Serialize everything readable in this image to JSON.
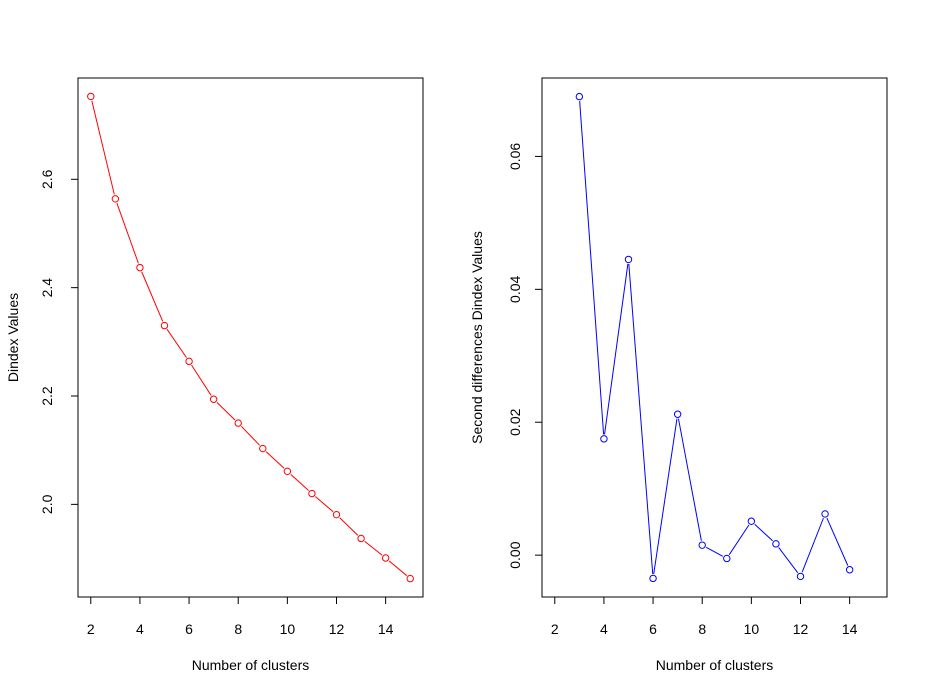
{
  "chart_data": [
    {
      "type": "line",
      "title": "",
      "xlabel": "Number of clusters",
      "ylabel": "Dindex Values",
      "x": [
        2,
        3,
        4,
        5,
        6,
        7,
        8,
        9,
        10,
        11,
        12,
        13,
        14,
        15
      ],
      "values": [
        2.753,
        2.564,
        2.437,
        2.33,
        2.264,
        2.194,
        2.15,
        2.103,
        2.061,
        2.02,
        1.981,
        1.937,
        1.901,
        1.863
      ],
      "xlim": [
        1.48,
        15.52
      ],
      "ylim": [
        1.829,
        2.787
      ],
      "xticks": [
        2,
        4,
        6,
        8,
        10,
        12,
        14
      ],
      "yticks": [
        2.0,
        2.2,
        2.4,
        2.6
      ],
      "ytick_labels": [
        "2.0",
        "2.2",
        "2.4",
        "2.6"
      ],
      "color": "#ff0000",
      "grid": false
    },
    {
      "type": "line",
      "title": "",
      "xlabel": "Number of clusters",
      "ylabel": "Second differences Dindex Values",
      "x": [
        3,
        4,
        5,
        6,
        7,
        8,
        9,
        10,
        11,
        12,
        13,
        14
      ],
      "values": [
        0.069,
        0.0175,
        0.0445,
        -0.0035,
        0.0212,
        0.0015,
        -0.0005,
        0.0051,
        0.0017,
        -0.0032,
        0.0062,
        -0.0022
      ],
      "xlim": [
        1.48,
        15.52
      ],
      "ylim": [
        -0.0063,
        0.0718
      ],
      "xticks": [
        2,
        4,
        6,
        8,
        10,
        12,
        14
      ],
      "yticks": [
        0.0,
        0.02,
        0.04,
        0.06
      ],
      "ytick_labels": [
        "0.00",
        "0.02",
        "0.04",
        "0.06"
      ],
      "color": "#0000ff",
      "grid": false
    }
  ]
}
